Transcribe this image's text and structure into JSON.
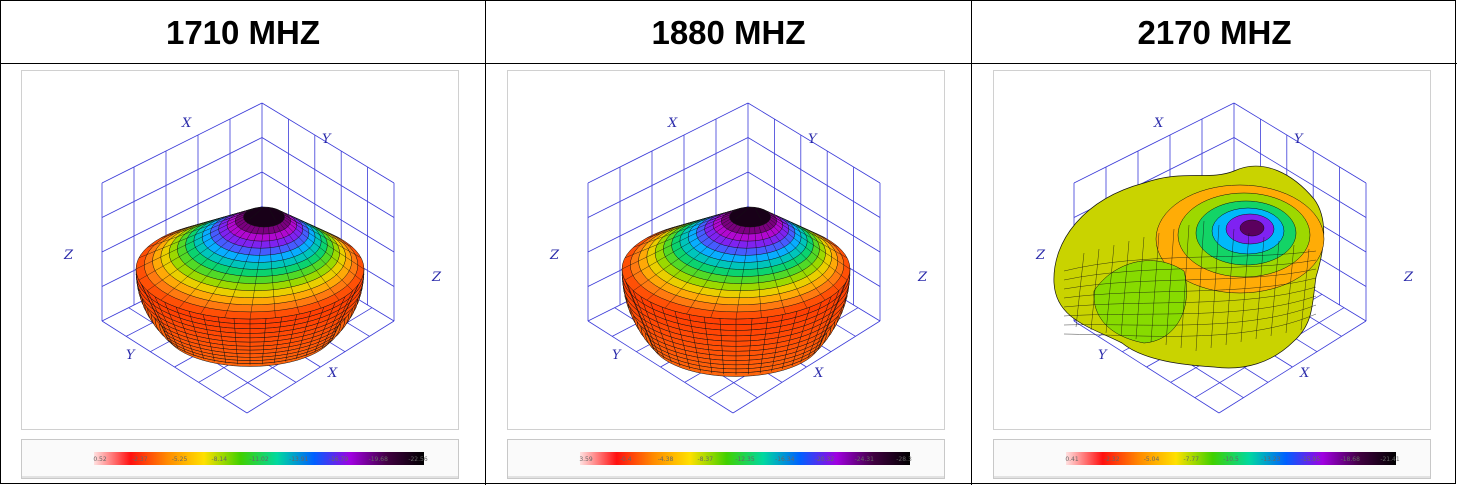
{
  "panels": [
    {
      "title": "1710 MHZ",
      "shape": "torus",
      "palette": [
        "#ff3300",
        "#ff7b10",
        "#ffcc00",
        "#77dd00",
        "#00d27a",
        "#00b8ff",
        "#6a2dff",
        "#c000c8",
        "#180018"
      ],
      "axes": {
        "x_top": "X",
        "y_top": "Y",
        "z_left": "Z",
        "z_right": "Z",
        "y_bottom": "Y",
        "x_bottom": "X"
      },
      "scale_ticks": [
        "0.52",
        "-2.37",
        "-5.25",
        "-8.14",
        "-11.02",
        "-13.91",
        "-16.79",
        "-19.68",
        "-22.56"
      ]
    },
    {
      "title": "1880 MHZ",
      "shape": "torus",
      "palette": [
        "#ff3300",
        "#ff7b10",
        "#ffcc00",
        "#77dd00",
        "#00d27a",
        "#00b8ff",
        "#6a2dff",
        "#c000c8",
        "#180018"
      ],
      "axes": {
        "x_top": "X",
        "y_top": "Y",
        "z_left": "Z",
        "z_right": "Z",
        "y_bottom": "Y",
        "x_bottom": "X"
      },
      "scale_ticks": [
        "3.59",
        "-0.4",
        "-4.38",
        "-8.37",
        "-12.35",
        "-16.34",
        "-20.32",
        "-24.31",
        "-28.3"
      ]
    },
    {
      "title": "2170 MHZ",
      "shape": "lobed",
      "palette": [
        "#ff3300",
        "#ff7b10",
        "#ffcc00",
        "#77dd00",
        "#00d27a",
        "#00b8ff",
        "#6a2dff",
        "#c000c8",
        "#180018"
      ],
      "axes": {
        "x_top": "X",
        "y_top": "Y",
        "z_left": "Z",
        "z_right": "Z",
        "y_bottom": "Y",
        "x_bottom": "X"
      },
      "scale_ticks": [
        "0.41",
        "-2.32",
        "-5.04",
        "-7.77",
        "-10.5",
        "-13.23",
        "-15.95",
        "-18.68",
        "-21.41"
      ]
    }
  ]
}
